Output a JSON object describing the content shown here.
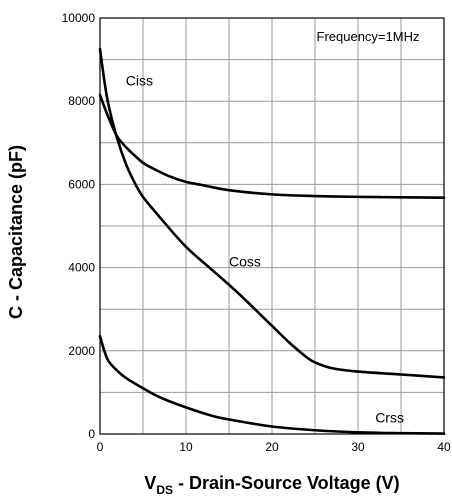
{
  "chart_data": {
    "type": "line",
    "xlim": [
      0,
      40
    ],
    "ylim": [
      0,
      10000
    ],
    "xticks": [
      0,
      10,
      20,
      30,
      40
    ],
    "yticks": [
      0,
      2000,
      4000,
      6000,
      8000,
      10000
    ],
    "xgrid_step": 5,
    "ygrid_step": 1000,
    "grid": true,
    "xlabel_prefix": "V",
    "xlabel_sub": "DS",
    "xlabel_rest": " - Drain-Source Voltage (V)",
    "ylabel": "C - Capacitance (pF)",
    "annotation": "Frequency=1MHz",
    "series": [
      {
        "name": "Ciss",
        "label_at": [
          3,
          8500
        ],
        "points": [
          [
            0,
            8150
          ],
          [
            1,
            7600
          ],
          [
            2,
            7150
          ],
          [
            3,
            6900
          ],
          [
            4,
            6700
          ],
          [
            5,
            6520
          ],
          [
            6,
            6400
          ],
          [
            8,
            6200
          ],
          [
            10,
            6060
          ],
          [
            12,
            5980
          ],
          [
            15,
            5860
          ],
          [
            20,
            5760
          ],
          [
            25,
            5720
          ],
          [
            30,
            5700
          ],
          [
            35,
            5690
          ],
          [
            40,
            5680
          ]
        ]
      },
      {
        "name": "Coss",
        "label_at": [
          15,
          4150
        ],
        "points": [
          [
            0,
            9250
          ],
          [
            0.5,
            8500
          ],
          [
            1,
            7900
          ],
          [
            2,
            7100
          ],
          [
            3,
            6500
          ],
          [
            4,
            6050
          ],
          [
            5,
            5700
          ],
          [
            7,
            5200
          ],
          [
            10,
            4500
          ],
          [
            13,
            3950
          ],
          [
            16,
            3400
          ],
          [
            20,
            2600
          ],
          [
            22,
            2200
          ],
          [
            24,
            1850
          ],
          [
            25,
            1720
          ],
          [
            27,
            1580
          ],
          [
            30,
            1500
          ],
          [
            35,
            1430
          ],
          [
            40,
            1360
          ]
        ]
      },
      {
        "name": "Crss",
        "label_at": [
          32,
          400
        ],
        "points": [
          [
            0,
            2350
          ],
          [
            0.5,
            2000
          ],
          [
            1,
            1750
          ],
          [
            2,
            1520
          ],
          [
            3,
            1350
          ],
          [
            5,
            1100
          ],
          [
            7,
            880
          ],
          [
            10,
            640
          ],
          [
            13,
            440
          ],
          [
            15,
            350
          ],
          [
            20,
            180
          ],
          [
            25,
            90
          ],
          [
            30,
            40
          ],
          [
            35,
            20
          ],
          [
            40,
            10
          ]
        ]
      }
    ]
  }
}
